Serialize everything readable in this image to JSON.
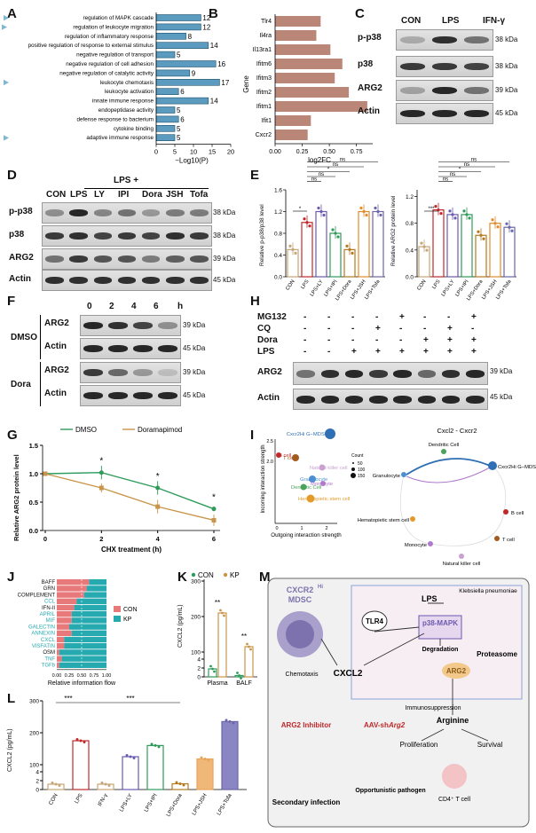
{
  "panels": {
    "A": "A",
    "B": "B",
    "C": "C",
    "D": "D",
    "E": "E",
    "F": "F",
    "G": "G",
    "H": "H",
    "I": "I",
    "J": "J",
    "K": "K",
    "L": "L",
    "M": "M"
  },
  "kda": {
    "k38": "38 kDa",
    "k39": "39 kDa",
    "k45": "45 kDa"
  },
  "panelA": {
    "type": "bar",
    "xlabel": "−Log10(P)",
    "xticks": [
      "0",
      "5",
      "10",
      "15",
      "20"
    ],
    "xlim": [
      0,
      20
    ],
    "terms": [
      "regulation of MAPK cascade",
      "regulation of leukocyte migration",
      "regulation of inflammatory response",
      "positive regulation of response to external stimulus",
      "negative regulation of transport",
      "negative regulation of cell adhesion",
      "negative regulation of catalytic activity",
      "leukocyte chemotaxis",
      "leukocyte activation",
      "innate immune response",
      "endopeptidase activity",
      "defense response to bacterium",
      "cytokine binding",
      "adaptive immune response"
    ],
    "values": [
      12,
      12,
      8,
      14,
      5,
      16,
      9,
      17,
      6,
      14,
      5,
      6,
      5,
      5
    ],
    "value_labels": [
      "12",
      "12",
      "8",
      "14",
      "5",
      "16",
      "9",
      "17",
      "6",
      "14",
      "5",
      "6",
      "5",
      "5"
    ],
    "marked": [
      true,
      true,
      false,
      false,
      false,
      false,
      false,
      true,
      false,
      false,
      false,
      false,
      false,
      true
    ]
  },
  "panelB": {
    "type": "bar",
    "xlabel": "log2FC",
    "ylabel": "Gene",
    "xticks": [
      "0.00",
      "0.25",
      "0.50",
      "0.75"
    ],
    "xlim": [
      0,
      0.9
    ],
    "genes": [
      "Tlr4",
      "Il4ra",
      "Il13ra1",
      "Ifitm6",
      "Ifitm3",
      "Ifitm2",
      "Ifitm1",
      "Ifit1",
      "Cxcr2"
    ],
    "values": [
      0.42,
      0.38,
      0.51,
      0.62,
      0.55,
      0.68,
      0.85,
      0.33,
      0.3
    ]
  },
  "panelC": {
    "cols": [
      "CON",
      "LPS",
      "IFN-γ"
    ],
    "rows": [
      "p-p38",
      "p38",
      "ARG2",
      "Actin"
    ]
  },
  "panelD": {
    "header": "LPS +",
    "cols": [
      "CON",
      "LPS",
      "LY",
      "IPI",
      "Dora",
      "JSH",
      "Tofa"
    ],
    "rows": [
      "p-p38",
      "p38",
      "ARG2",
      "Actin"
    ]
  },
  "panelE": {
    "charts": [
      {
        "type": "bar",
        "ylabel": "Relative p-p38/p38 level",
        "yticks": [
          "0.0",
          "0.4",
          "0.8",
          "1.2",
          "1.6"
        ],
        "ylim": [
          0,
          1.6
        ],
        "categories": [
          "CON",
          "LPS",
          "LPS+LY",
          "LPS+IPI",
          "LPS+Dora",
          "LPS+JSH",
          "LPS+Tofa"
        ],
        "values": [
          0.5,
          1.0,
          1.2,
          0.8,
          0.5,
          1.2,
          1.2
        ],
        "sig": [
          {
            "label": "*",
            "a": 0,
            "b": 1
          },
          {
            "label": "ns",
            "a": 1,
            "b": 2
          },
          {
            "label": "ns",
            "a": 1,
            "b": 3
          },
          {
            "label": "*",
            "a": 1,
            "b": 4
          },
          {
            "label": "ns",
            "a": 1,
            "b": 5
          },
          {
            "label": "ns",
            "a": 1,
            "b": 6
          }
        ]
      },
      {
        "type": "bar",
        "ylabel": "Relative ARG2 protein level",
        "yticks": [
          "0.0",
          "0.4",
          "0.8",
          "1.2"
        ],
        "ylim": [
          0,
          1.3
        ],
        "categories": [
          "CON",
          "LPS",
          "LPS+LY",
          "LPS+IPI",
          "LPS+Dora",
          "LPS+JSH",
          "LPS+Tofa"
        ],
        "values": [
          0.45,
          1.0,
          0.93,
          0.93,
          0.62,
          0.8,
          0.74
        ],
        "sig": [
          {
            "label": "***",
            "a": 0,
            "b": 1
          },
          {
            "label": "ns",
            "a": 1,
            "b": 2
          },
          {
            "label": "ns",
            "a": 1,
            "b": 3
          },
          {
            "label": "*",
            "a": 1,
            "b": 4
          },
          {
            "label": "ns",
            "a": 1,
            "b": 5
          },
          {
            "label": "ns",
            "a": 1,
            "b": 6
          }
        ]
      }
    ]
  },
  "panelF": {
    "times": [
      "0",
      "2",
      "4",
      "6"
    ],
    "unit": "h",
    "groups": [
      "DMSO",
      "Dora"
    ],
    "rows": [
      "ARG2",
      "Actin"
    ]
  },
  "panelG": {
    "type": "line",
    "xlabel": "CHX treatment  (h)",
    "ylabel": "Relative ARG2 protein level",
    "xticks": [
      "0",
      "2",
      "4",
      "6"
    ],
    "yticks": [
      "0.0",
      "0.5",
      "1.0",
      "1.5"
    ],
    "ylim": [
      0,
      1.5
    ],
    "xlim": [
      0,
      6
    ],
    "series": [
      {
        "name": "DMSO",
        "color": "#2e9b5a",
        "x": [
          0,
          2,
          4,
          6
        ],
        "values": [
          1.0,
          1.02,
          0.75,
          0.38
        ],
        "err": [
          0,
          0.12,
          0.12,
          0.04
        ]
      },
      {
        "name": "Doramapimod",
        "color": "#c8954a",
        "x": [
          0,
          2,
          4,
          6
        ],
        "values": [
          1.0,
          0.75,
          0.42,
          0.18
        ],
        "err": [
          0,
          0.08,
          0.12,
          0.1
        ]
      }
    ],
    "sig": [
      {
        "x": 2,
        "label": "*"
      },
      {
        "x": 4,
        "label": "*"
      },
      {
        "x": 6,
        "label": "*"
      }
    ]
  },
  "panelH": {
    "row_labels": [
      "MG132",
      "CQ",
      "Dora",
      "LPS"
    ],
    "matrix": [
      [
        "-",
        "-",
        "-",
        "-",
        "+",
        "-",
        "-",
        "+"
      ],
      [
        "-",
        "-",
        "-",
        "+",
        "-",
        "-",
        "+",
        "-"
      ],
      [
        "-",
        "-",
        "-",
        "-",
        "-",
        "+",
        "+",
        "+"
      ],
      [
        "-",
        "-",
        "+",
        "+",
        "+",
        "+",
        "+",
        "+"
      ]
    ],
    "rows": [
      "ARG2",
      "Actin"
    ]
  },
  "panelI": {
    "title": "Cxcl2 - Cxcr2",
    "xlabel": "Outgoing interaction strength",
    "ylabel": "Incoming interaction strength",
    "yticks": [
      "2.0",
      "2.5"
    ],
    "xticks": [
      "0",
      "1",
      "2"
    ],
    "legend_title": "Count",
    "legend_counts": [
      "50",
      "100",
      "150"
    ],
    "points": [
      {
        "name": "Cxcr2Hi G−MDSC",
        "color": "#2f6fb3"
      },
      {
        "name": "B cell",
        "color": "#c0282a"
      },
      {
        "name": "T cell",
        "color": "#a35a1f"
      },
      {
        "name": "Natural killer cell",
        "color": "#c9a2d0"
      },
      {
        "name": "Granulocyte",
        "color": "#4d8fd2"
      },
      {
        "name": "Dendritic Cell",
        "color": "#4aa35a"
      },
      {
        "name": "Monocyte",
        "color": "#b07acb"
      },
      {
        "name": "Hematopietic stem cell",
        "color": "#e39a2a"
      }
    ],
    "network": [
      "Dendritic Cell",
      "Cxcr2Hi G−MDSC",
      "Granulocyte",
      "B cell",
      "Hematopietic stem cell",
      "T cell",
      "Monocyte",
      "Natural killer cell"
    ]
  },
  "panelJ": {
    "type": "bar",
    "xlabel": "Relative information flow",
    "xticks": [
      "0.00",
      "0.25",
      "0.50",
      "0.75",
      "1.00"
    ],
    "pathways": [
      "BAFF",
      "GRN",
      "COMPLEMENT",
      "CCL",
      "IFN-II",
      "APRIL",
      "MIF",
      "GALECTIN",
      "ANNEXIN",
      "CXCL",
      "VISFATIN",
      "OSM",
      "TNF",
      "TGFb"
    ],
    "con": [
      0.65,
      0.6,
      0.55,
      0.4,
      0.35,
      0.3,
      0.3,
      0.25,
      0.3,
      0.15,
      0.15,
      0.05,
      0.1,
      0.05
    ],
    "highlight": [
      false,
      false,
      false,
      true,
      false,
      true,
      true,
      true,
      true,
      true,
      true,
      false,
      true,
      true
    ],
    "legend": [
      "CON",
      "KP"
    ]
  },
  "panelK": {
    "type": "bar",
    "ylabel": "CXCL2 (pg/mL)",
    "yticks": [
      "0",
      "2",
      "4",
      "100",
      "200",
      "300"
    ],
    "groups": [
      "Plasma",
      "BALF"
    ],
    "series_names": [
      "CON",
      "KP"
    ],
    "series": [
      {
        "name": "CON",
        "values": [
          1.8,
          0.3
        ]
      },
      {
        "name": "KP",
        "values": [
          210,
          115
        ]
      }
    ],
    "sig": [
      "**",
      "**"
    ]
  },
  "panelL": {
    "type": "bar",
    "ylabel": "CXCL2 (pg/mL)",
    "yticks": [
      "0",
      "2",
      "4",
      "100",
      "200",
      "300"
    ],
    "categories": [
      "CON",
      "LPS",
      "IFN-γ",
      "LPS+LY",
      "LPS+IPI",
      "LPS+Dora",
      "LPS+JSH",
      "LPS+Tofa"
    ],
    "values": [
      1.2,
      175,
      1.2,
      125,
      160,
      1.3,
      118,
      235
    ],
    "sig": [
      "***",
      "***"
    ]
  },
  "panelM": {
    "labels": {
      "klebsiella": "Klebsiella pneumoniae",
      "lps": "LPS",
      "tlr4": "TLR4",
      "p38": "p38-MAPK",
      "proteasome": "Proteasome",
      "degradation": "Degradation",
      "arg2": "ARG2",
      "mdsc_a": "CXCR2",
      "mdsc_sup": "Hi",
      "mdsc_b": "MDSC",
      "cxcl2": "CXCL2",
      "chemotaxis": "Chemotaxis",
      "immuno": "Immunosuppression",
      "arginine": "Arginine",
      "arg2_inhib": "ARG2 Inhibitor",
      "aav_a": "AAV-sh",
      "aav_b": "Arg2",
      "proliferation": "Proliferation",
      "survival": "Survival",
      "secondary": "Secondary infection",
      "opportunistic": "Opportunistic pathogen",
      "cd4": "CD4⁺ T cell"
    }
  }
}
